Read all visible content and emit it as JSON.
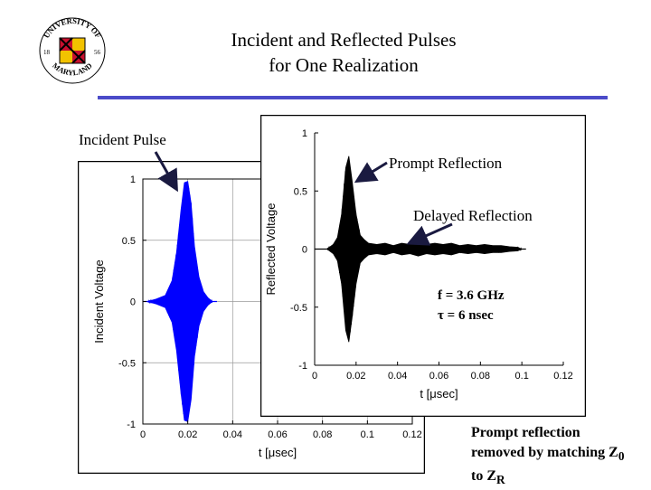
{
  "slide": {
    "title_line1": "Incident and Reflected Pulses",
    "title_line2": "for One Realization",
    "accent_color": "#4b4bc9",
    "logo_text_top": "UNIVERSITY OF",
    "logo_text_bottom": "MARYLAND",
    "logo_year_left": "18",
    "logo_year_right": "56"
  },
  "annotations": {
    "incident_pulse": "Incident Pulse",
    "prompt_reflection": "Prompt Reflection",
    "delayed_reflection": "Delayed Reflection",
    "freq": "f = 3.6 GHz",
    "tau": "τ = 6 nsec",
    "note_line1": "Prompt reflection",
    "note_line2": "removed by matching Z",
    "note_sub1": "0",
    "note_line3": "to Z",
    "note_sub2": "R"
  },
  "chart_data": [
    {
      "type": "line",
      "name": "incident",
      "title": "",
      "xlabel": "t [μsec]",
      "ylabel": "Incident Voltage",
      "xlim": [
        0,
        0.12
      ],
      "ylim": [
        -1,
        1
      ],
      "x_ticks": [
        "0",
        "0.02",
        "0.04",
        "0.06",
        "0.08",
        "0.1",
        "0.12"
      ],
      "y_ticks": [
        "1",
        "0.5",
        "0",
        "-0.5",
        "-1"
      ],
      "grid": true,
      "color": "#0000ff",
      "envelope": [
        [
          0.002,
          0.0
        ],
        [
          0.006,
          0.02
        ],
        [
          0.01,
          0.05
        ],
        [
          0.013,
          0.17
        ],
        [
          0.015,
          0.4
        ],
        [
          0.017,
          0.75
        ],
        [
          0.0185,
          0.97
        ],
        [
          0.02,
          0.98
        ],
        [
          0.0215,
          0.8
        ],
        [
          0.023,
          0.45
        ],
        [
          0.025,
          0.2
        ],
        [
          0.027,
          0.08
        ],
        [
          0.029,
          0.03
        ],
        [
          0.031,
          0.0
        ]
      ]
    },
    {
      "type": "line",
      "name": "reflected",
      "title": "",
      "xlabel": "t [μsec]",
      "ylabel": "Reflected Voltage",
      "xlim": [
        0,
        0.12
      ],
      "ylim": [
        -1,
        1
      ],
      "x_ticks": [
        "0",
        "0.02",
        "0.04",
        "0.06",
        "0.08",
        "0.1",
        "0.12"
      ],
      "y_ticks": [
        "1",
        "0.5",
        "0",
        "-0.5",
        "-1"
      ],
      "grid": false,
      "color": "#000000",
      "envelope": [
        [
          0.006,
          0.0
        ],
        [
          0.009,
          0.04
        ],
        [
          0.011,
          0.1
        ],
        [
          0.013,
          0.3
        ],
        [
          0.015,
          0.7
        ],
        [
          0.0165,
          0.8
        ],
        [
          0.018,
          0.6
        ],
        [
          0.02,
          0.3
        ],
        [
          0.022,
          0.12
        ],
        [
          0.024,
          0.08
        ],
        [
          0.026,
          0.05
        ],
        [
          0.03,
          0.04
        ],
        [
          0.034,
          0.05
        ],
        [
          0.038,
          0.03
        ],
        [
          0.042,
          0.05
        ],
        [
          0.046,
          0.04
        ],
        [
          0.05,
          0.06
        ],
        [
          0.054,
          0.04
        ],
        [
          0.058,
          0.05
        ],
        [
          0.062,
          0.04
        ],
        [
          0.066,
          0.05
        ],
        [
          0.07,
          0.03
        ],
        [
          0.074,
          0.04
        ],
        [
          0.078,
          0.03
        ],
        [
          0.082,
          0.04
        ],
        [
          0.086,
          0.03
        ],
        [
          0.09,
          0.03
        ],
        [
          0.094,
          0.02
        ],
        [
          0.098,
          0.015
        ],
        [
          0.1,
          0.0
        ]
      ]
    }
  ]
}
